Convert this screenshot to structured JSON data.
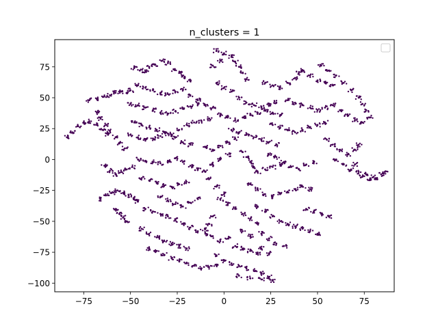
{
  "chart_data": {
    "type": "scatter",
    "title": "n_clusters = 1",
    "xlabel": "",
    "ylabel": "",
    "xlim": [
      -90.5,
      91.0
    ],
    "ylim": [
      -107.0,
      97.0
    ],
    "xticks": [
      -75,
      -50,
      -25,
      0,
      25,
      50,
      75
    ],
    "xtick_labels": [
      "−75",
      "−50",
      "−25",
      "0",
      "25",
      "50",
      "75"
    ],
    "yticks": [
      -100,
      -75,
      -50,
      -25,
      0,
      25,
      50,
      75
    ],
    "ytick_labels": [
      "−100",
      "−75",
      "−50",
      "−25",
      "0",
      "25",
      "50",
      "75"
    ],
    "grid": false,
    "legend": {
      "placement": "upper right",
      "entries": []
    },
    "point_color": "#440154",
    "clusters": 1,
    "series": [
      {
        "points": [
          [
            -84,
            18
          ],
          [
            -81,
            22
          ],
          [
            -78,
            27
          ],
          [
            -75,
            30
          ],
          [
            -72,
            31
          ],
          [
            -68,
            28
          ],
          [
            -65,
            24
          ],
          [
            -62,
            20
          ],
          [
            -72,
            48
          ],
          [
            -68,
            49
          ],
          [
            -64,
            51
          ],
          [
            -61,
            52
          ],
          [
            -58,
            54
          ],
          [
            -55,
            55
          ],
          [
            -52,
            54
          ],
          [
            -50,
            56
          ],
          [
            -68,
            38
          ],
          [
            -66,
            33
          ],
          [
            -63,
            28
          ],
          [
            -61,
            23
          ],
          [
            -58,
            18
          ],
          [
            -56,
            13
          ],
          [
            -53,
            9
          ],
          [
            -64,
            -5
          ],
          [
            -61,
            -9
          ],
          [
            -58,
            -12
          ],
          [
            -55,
            -10
          ],
          [
            -52,
            -8
          ],
          [
            -49,
            -6
          ],
          [
            -66,
            -32
          ],
          [
            -63,
            -29
          ],
          [
            -60,
            -27
          ],
          [
            -57,
            -25
          ],
          [
            -54,
            -27
          ],
          [
            -51,
            -29
          ],
          [
            -48,
            -31
          ],
          [
            -46,
            -34
          ],
          [
            -58,
            -40
          ],
          [
            -56,
            -44
          ],
          [
            -54,
            -47
          ],
          [
            -52,
            -50
          ],
          [
            -48,
            74
          ],
          [
            -45,
            72
          ],
          [
            -42,
            71
          ],
          [
            -40,
            75
          ],
          [
            -37,
            77
          ],
          [
            -33,
            80
          ],
          [
            -30,
            78
          ],
          [
            -27,
            73
          ],
          [
            -24,
            70
          ],
          [
            -21,
            67
          ],
          [
            -18,
            64
          ],
          [
            -46,
            60
          ],
          [
            -42,
            58
          ],
          [
            -38,
            56
          ],
          [
            -34,
            54
          ],
          [
            -30,
            53
          ],
          [
            -26,
            55
          ],
          [
            -22,
            57
          ],
          [
            -18,
            52
          ],
          [
            -14,
            48
          ],
          [
            -50,
            45
          ],
          [
            -46,
            44
          ],
          [
            -42,
            42
          ],
          [
            -38,
            40
          ],
          [
            -34,
            38
          ],
          [
            -30,
            37
          ],
          [
            -26,
            39
          ],
          [
            -22,
            41
          ],
          [
            -18,
            43
          ],
          [
            -14,
            45
          ],
          [
            -10,
            44
          ],
          [
            -6,
            42
          ],
          [
            -48,
            30
          ],
          [
            -44,
            28
          ],
          [
            -40,
            26
          ],
          [
            -36,
            24
          ],
          [
            -32,
            22
          ],
          [
            -28,
            20
          ],
          [
            -24,
            24
          ],
          [
            -20,
            28
          ],
          [
            -16,
            30
          ],
          [
            -12,
            31
          ],
          [
            -8,
            33
          ],
          [
            -50,
            20
          ],
          [
            -46,
            18
          ],
          [
            -42,
            16
          ],
          [
            -38,
            17
          ],
          [
            -34,
            19
          ],
          [
            -30,
            21
          ],
          [
            -26,
            18
          ],
          [
            -22,
            14
          ],
          [
            -18,
            12
          ],
          [
            -46,
            0
          ],
          [
            -42,
            -1
          ],
          [
            -38,
            -2
          ],
          [
            -34,
            -3
          ],
          [
            -30,
            -1
          ],
          [
            -26,
            1
          ],
          [
            -22,
            -2
          ],
          [
            -18,
            -5
          ],
          [
            -14,
            -8
          ],
          [
            -44,
            -15
          ],
          [
            -40,
            -17
          ],
          [
            -36,
            -19
          ],
          [
            -32,
            -21
          ],
          [
            -28,
            -22
          ],
          [
            -24,
            -20
          ],
          [
            -20,
            -18
          ],
          [
            -42,
            -40
          ],
          [
            -38,
            -42
          ],
          [
            -34,
            -44
          ],
          [
            -30,
            -46
          ],
          [
            -26,
            -49
          ],
          [
            -22,
            -52
          ],
          [
            -18,
            -55
          ],
          [
            -14,
            -58
          ],
          [
            -10,
            -60
          ],
          [
            -44,
            -56
          ],
          [
            -40,
            -60
          ],
          [
            -36,
            -63
          ],
          [
            -32,
            -66
          ],
          [
            -28,
            -68
          ],
          [
            -24,
            -70
          ],
          [
            -20,
            -72
          ],
          [
            -40,
            -72
          ],
          [
            -36,
            -74
          ],
          [
            -32,
            -77
          ],
          [
            -28,
            -80
          ],
          [
            -24,
            -82
          ],
          [
            -20,
            -84
          ],
          [
            -16,
            -86
          ],
          [
            -12,
            -88
          ],
          [
            -8,
            -87
          ],
          [
            -4,
            -85
          ],
          [
            -34,
            -30
          ],
          [
            -30,
            -33
          ],
          [
            -26,
            -36
          ],
          [
            -22,
            -38
          ],
          [
            -18,
            -35
          ],
          [
            -14,
            -32
          ],
          [
            -10,
            10
          ],
          [
            -6,
            8
          ],
          [
            -2,
            11
          ],
          [
            2,
            14
          ],
          [
            6,
            17
          ],
          [
            2,
            4
          ],
          [
            -2,
            0
          ],
          [
            -6,
            -4
          ],
          [
            -10,
            -10
          ],
          [
            -8,
            -16
          ],
          [
            -4,
            -22
          ],
          [
            0,
            -28
          ],
          [
            -4,
            88
          ],
          [
            0,
            86
          ],
          [
            4,
            83
          ],
          [
            6,
            79
          ],
          [
            8,
            75
          ],
          [
            10,
            70
          ],
          [
            12,
            65
          ],
          [
            -2,
            80
          ],
          [
            -6,
            76
          ],
          [
            -4,
            62
          ],
          [
            0,
            58
          ],
          [
            4,
            55
          ],
          [
            8,
            50
          ],
          [
            12,
            46
          ],
          [
            16,
            44
          ],
          [
            20,
            42
          ],
          [
            24,
            44
          ],
          [
            28,
            46
          ],
          [
            -2,
            36
          ],
          [
            2,
            34
          ],
          [
            6,
            32
          ],
          [
            10,
            34
          ],
          [
            14,
            36
          ],
          [
            18,
            38
          ],
          [
            22,
            40
          ],
          [
            26,
            38
          ],
          [
            30,
            36
          ],
          [
            4,
            24
          ],
          [
            8,
            22
          ],
          [
            12,
            20
          ],
          [
            16,
            18
          ],
          [
            20,
            16
          ],
          [
            24,
            14
          ],
          [
            28,
            12
          ],
          [
            10,
            6
          ],
          [
            12,
            2
          ],
          [
            14,
            -2
          ],
          [
            16,
            -6
          ],
          [
            18,
            -10
          ],
          [
            22,
            -8
          ],
          [
            26,
            -6
          ],
          [
            30,
            -4
          ],
          [
            -2,
            -32
          ],
          [
            2,
            -36
          ],
          [
            6,
            -40
          ],
          [
            10,
            -44
          ],
          [
            14,
            -48
          ],
          [
            18,
            -52
          ],
          [
            -6,
            -46
          ],
          [
            -8,
            -52
          ],
          [
            -10,
            -56
          ],
          [
            -6,
            -62
          ],
          [
            -2,
            -66
          ],
          [
            2,
            -64
          ],
          [
            -4,
            -78
          ],
          [
            0,
            -82
          ],
          [
            4,
            -84
          ],
          [
            8,
            -86
          ],
          [
            12,
            -88
          ],
          [
            16,
            -90
          ],
          [
            20,
            -92
          ],
          [
            24,
            -95
          ],
          [
            26,
            -98
          ],
          [
            20,
            -97
          ],
          [
            14,
            -96
          ],
          [
            8,
            -94
          ],
          [
            6,
            -70
          ],
          [
            10,
            -72
          ],
          [
            14,
            -74
          ],
          [
            18,
            -76
          ],
          [
            14,
            -62
          ],
          [
            10,
            -58
          ],
          [
            14,
            -20
          ],
          [
            18,
            -24
          ],
          [
            22,
            -28
          ],
          [
            26,
            -30
          ],
          [
            30,
            -28
          ],
          [
            34,
            -26
          ],
          [
            38,
            -24
          ],
          [
            42,
            -22
          ],
          [
            46,
            -24
          ],
          [
            18,
            -38
          ],
          [
            22,
            -42
          ],
          [
            26,
            -46
          ],
          [
            30,
            -50
          ],
          [
            34,
            -52
          ],
          [
            38,
            -54
          ],
          [
            42,
            -56
          ],
          [
            46,
            -58
          ],
          [
            50,
            -60
          ],
          [
            20,
            -60
          ],
          [
            24,
            -64
          ],
          [
            28,
            -68
          ],
          [
            32,
            -70
          ],
          [
            24,
            -76
          ],
          [
            20,
            -72
          ],
          [
            22,
            62
          ],
          [
            26,
            60
          ],
          [
            30,
            58
          ],
          [
            34,
            62
          ],
          [
            38,
            66
          ],
          [
            40,
            70
          ],
          [
            42,
            72
          ],
          [
            46,
            68
          ],
          [
            50,
            64
          ],
          [
            54,
            62
          ],
          [
            58,
            60
          ],
          [
            26,
            28
          ],
          [
            30,
            26
          ],
          [
            34,
            24
          ],
          [
            38,
            22
          ],
          [
            42,
            24
          ],
          [
            46,
            26
          ],
          [
            50,
            28
          ],
          [
            54,
            30
          ],
          [
            24,
            4
          ],
          [
            28,
            2
          ],
          [
            32,
            -2
          ],
          [
            36,
            -6
          ],
          [
            40,
            -8
          ],
          [
            44,
            -4
          ],
          [
            48,
            -2
          ],
          [
            34,
            48
          ],
          [
            38,
            46
          ],
          [
            42,
            44
          ],
          [
            46,
            42
          ],
          [
            50,
            40
          ],
          [
            54,
            42
          ],
          [
            44,
            -40
          ],
          [
            48,
            -42
          ],
          [
            52,
            -44
          ],
          [
            56,
            -46
          ],
          [
            52,
            76
          ],
          [
            56,
            72
          ],
          [
            60,
            68
          ],
          [
            64,
            62
          ],
          [
            68,
            56
          ],
          [
            72,
            50
          ],
          [
            74,
            45
          ],
          [
            76,
            40
          ],
          [
            78,
            34
          ],
          [
            74,
            30
          ],
          [
            70,
            32
          ],
          [
            66,
            36
          ],
          [
            62,
            40
          ],
          [
            58,
            44
          ],
          [
            55,
            16
          ],
          [
            58,
            12
          ],
          [
            62,
            8
          ],
          [
            66,
            4
          ],
          [
            70,
            8
          ],
          [
            72,
            12
          ],
          [
            60,
            0
          ],
          [
            64,
            -4
          ],
          [
            68,
            -8
          ],
          [
            72,
            -10
          ],
          [
            76,
            -12
          ],
          [
            80,
            -14
          ],
          [
            84,
            -12
          ],
          [
            86,
            -10
          ],
          [
            82,
            -16
          ],
          [
            78,
            -16
          ],
          [
            74,
            -14
          ],
          [
            70,
            -4
          ]
        ]
      }
    ]
  }
}
